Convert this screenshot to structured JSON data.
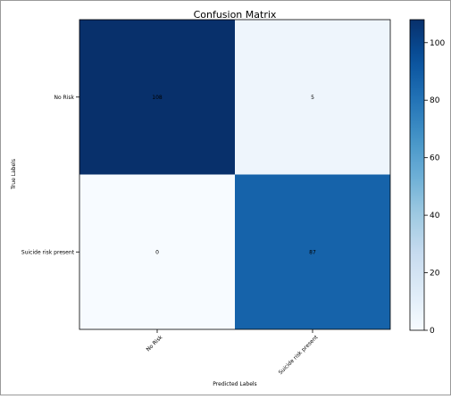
{
  "chart_data": {
    "type": "heatmap",
    "title": "Confusion Matrix",
    "xlabel": "Predicted Labels",
    "ylabel": "True Labels",
    "x_categories": [
      "No Risk",
      "Suicide risk present"
    ],
    "y_categories": [
      "No Risk",
      "Suicide risk present"
    ],
    "values": [
      [
        108,
        5
      ],
      [
        0,
        87
      ]
    ],
    "colormap": "Blues",
    "vmin": 0,
    "vmax": 108,
    "colorbar_ticks": [
      0,
      20,
      40,
      60,
      80,
      100
    ],
    "colors": {
      "low": "#f7fbff",
      "high": "#08306b"
    }
  }
}
